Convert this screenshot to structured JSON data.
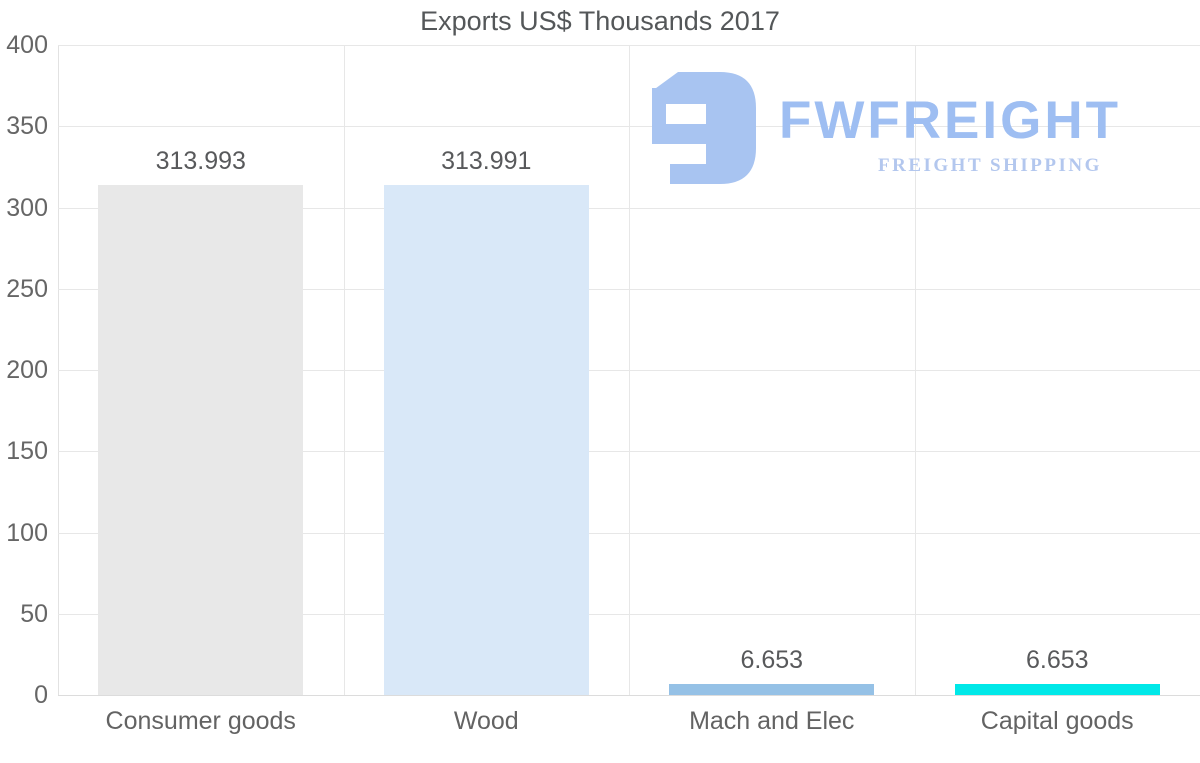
{
  "page": {
    "background": "#ffffff"
  },
  "chart_data": {
    "type": "bar",
    "title": "Exports US$ Thousands 2017",
    "categories": [
      "Consumer goods",
      "Wood",
      "Mach and Elec",
      "Capital goods"
    ],
    "values": [
      313.993,
      313.991,
      6.653,
      6.653
    ],
    "value_labels": [
      "313.993",
      "313.991",
      "6.653",
      "6.653"
    ],
    "bar_colors": [
      "#e8e8e8",
      "#d9e8f8",
      "#95c1e6",
      "#00e8e8"
    ],
    "xlabel": "",
    "ylabel": "",
    "ylim": [
      0,
      400
    ],
    "yticks": [
      400,
      350,
      300,
      250,
      200,
      150,
      100,
      50,
      0
    ],
    "grid": true,
    "legend": "none",
    "colors": {
      "title_text": "#545759",
      "tick_text": "#666666",
      "value_text": "#58595b",
      "gridline": "#e7e7e7",
      "axis_line": "#dcdcdc"
    }
  },
  "logo": {
    "brand": "FWFREIGHT",
    "tagline": "FREIGHT SHIPPING",
    "brand_color": "#9ebef2",
    "glyph_color": "#a8c4f1",
    "glyph": "fwfreight-mark-icon"
  }
}
